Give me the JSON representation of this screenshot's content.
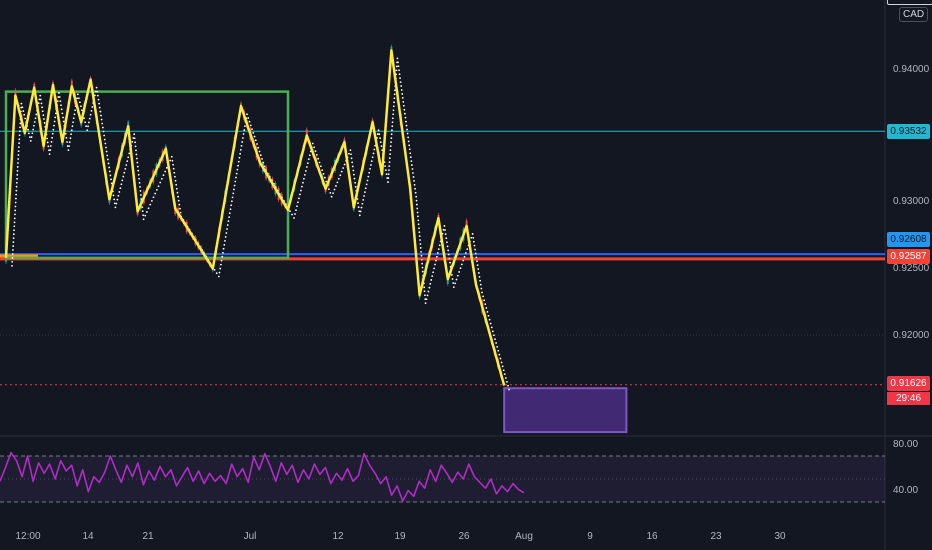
{
  "currency": "CAD",
  "price_axis": {
    "ticks": [
      "0.94000",
      "0.93000",
      "0.92500",
      "0.92000"
    ],
    "tick_values": [
      0.94,
      0.93,
      0.925,
      0.92
    ]
  },
  "price_tags": {
    "cyan_line": "0.93532",
    "blue_tag": "0.92608",
    "red_tag": "0.92587",
    "current": "0.91626",
    "countdown": "29:46"
  },
  "rsi_axis": {
    "ticks": [
      "80.00",
      "40.00"
    ]
  },
  "time_axis": {
    "labels": [
      "12:00",
      "14",
      "21",
      "Jul",
      "12",
      "19",
      "26",
      "Aug",
      "9",
      "16",
      "23",
      "30"
    ]
  },
  "colors": {
    "background": "#131722",
    "zigzag": "#ffeb3b",
    "box": "#4caf50",
    "cyan_line": "#22b8d1",
    "red_line": "#f44336",
    "blue_line": "#2962ff",
    "projection_box": "#7e57c2",
    "rsi": "#b02cc6",
    "current_price": "#f23645"
  },
  "chart_data": {
    "type": "line",
    "title": "",
    "xlabel": "",
    "ylabel": "",
    "ylim": [
      0.9145,
      0.9445
    ],
    "levels": [
      0.93532,
      0.92608,
      0.92587,
      0.91626
    ],
    "zigzag": [
      {
        "x": "Jun 9",
        "y": 0.9258
      },
      {
        "x": "Jun 10",
        "y": 0.938
      },
      {
        "x": "Jun 11",
        "y": 0.9352
      },
      {
        "x": "Jun 12",
        "y": 0.9386
      },
      {
        "x": "Jun 13",
        "y": 0.9342
      },
      {
        "x": "Jun 14",
        "y": 0.9388
      },
      {
        "x": "Jun 15",
        "y": 0.9345
      },
      {
        "x": "Jun 16",
        "y": 0.9387
      },
      {
        "x": "Jun 17",
        "y": 0.936
      },
      {
        "x": "Jun 18",
        "y": 0.9392
      },
      {
        "x": "Jun 20",
        "y": 0.9302
      },
      {
        "x": "Jun 22",
        "y": 0.9357
      },
      {
        "x": "Jun 23",
        "y": 0.9293
      },
      {
        "x": "Jun 26",
        "y": 0.934
      },
      {
        "x": "Jun 27",
        "y": 0.9295
      },
      {
        "x": "Jul 1",
        "y": 0.925
      },
      {
        "x": "Jul 4",
        "y": 0.9372
      },
      {
        "x": "Jul 6",
        "y": 0.933
      },
      {
        "x": "Jul 9",
        "y": 0.9294
      },
      {
        "x": "Jul 11",
        "y": 0.935
      },
      {
        "x": "Jul 13",
        "y": 0.931
      },
      {
        "x": "Jul 15",
        "y": 0.9345
      },
      {
        "x": "Jul 16",
        "y": 0.9296
      },
      {
        "x": "Jul 18",
        "y": 0.936
      },
      {
        "x": "Jul 19",
        "y": 0.9321
      },
      {
        "x": "Jul 20",
        "y": 0.9414
      },
      {
        "x": "Jul 22",
        "y": 0.931
      },
      {
        "x": "Jul 23",
        "y": 0.923
      },
      {
        "x": "Jul 25",
        "y": 0.9288
      },
      {
        "x": "Jul 26",
        "y": 0.9242
      },
      {
        "x": "Jul 28",
        "y": 0.9282
      },
      {
        "x": "Jul 29",
        "y": 0.9238
      },
      {
        "x": "Aug 1",
        "y": 0.9162
      }
    ],
    "box": {
      "x_start": "Jun 9",
      "x_end": "Jul 9",
      "y_top": 0.9383,
      "y_bottom": 0.9258
    },
    "projection_box": {
      "x_start": "Aug 1",
      "x_end": "Aug 14",
      "y_top": 0.916,
      "y_bottom": 0.9127
    },
    "rsi": {
      "guides": [
        70,
        30
      ],
      "midline": 50,
      "values": [
        48,
        60,
        73,
        66,
        52,
        70,
        48,
        64,
        55,
        63,
        50,
        66,
        57,
        62,
        44,
        58,
        39,
        52,
        47,
        56,
        70,
        58,
        47,
        62,
        52,
        64,
        45,
        57,
        49,
        61,
        52,
        58,
        44,
        52,
        60,
        48,
        57,
        46,
        55,
        48,
        53,
        46,
        63,
        52,
        59,
        47,
        69,
        58,
        72,
        61,
        48,
        64,
        54,
        62,
        47,
        58,
        50,
        63,
        54,
        60,
        46,
        55,
        49,
        59,
        48,
        53,
        72,
        62,
        55,
        46,
        52,
        36,
        44,
        31,
        40,
        35,
        48,
        42,
        58,
        48,
        62,
        55,
        47,
        56,
        50,
        63,
        52,
        47,
        42,
        50,
        37,
        44,
        39,
        46,
        41,
        38
      ]
    }
  }
}
